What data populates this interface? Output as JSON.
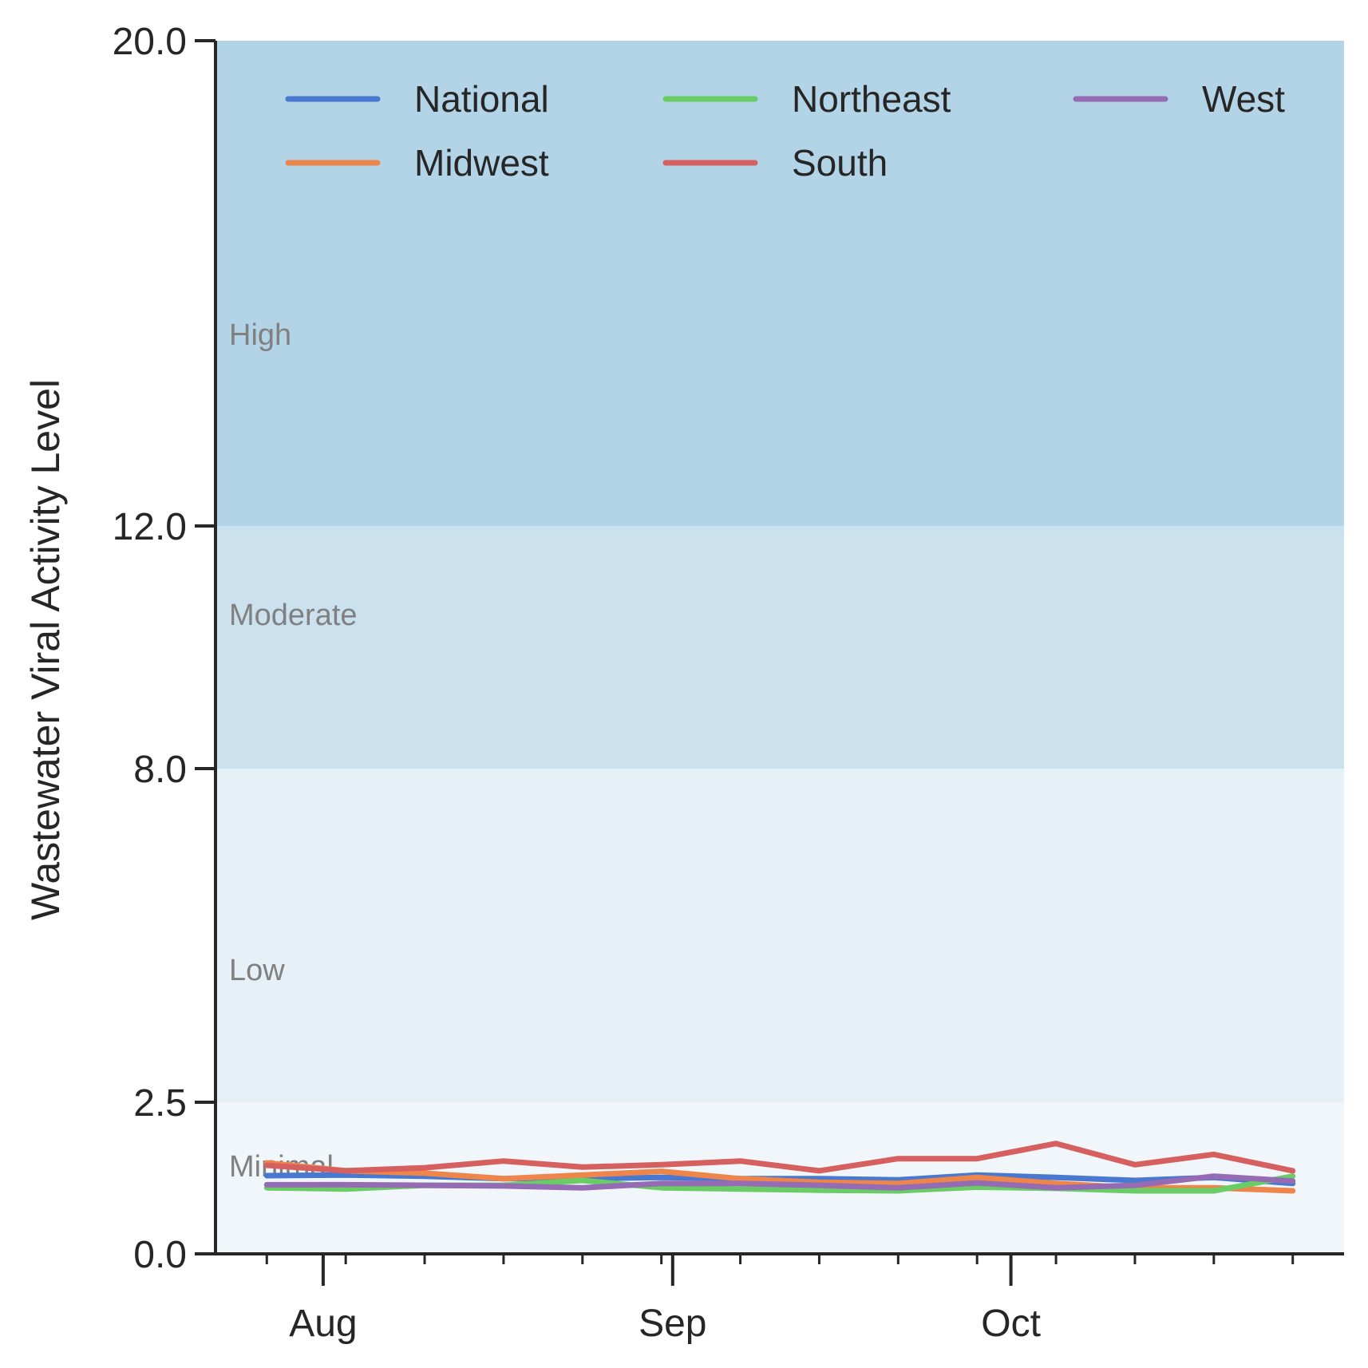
{
  "chart_data": {
    "type": "line",
    "title": "",
    "xlabel": "",
    "ylabel": "Wastewater Viral Activity Level",
    "ylim": [
      0,
      20
    ],
    "yticks": [
      0.0,
      2.5,
      8.0,
      12.0,
      20.0
    ],
    "ytick_labels": [
      "0.0",
      "2.5",
      "8.0",
      "12.0",
      "20.0"
    ],
    "xtick_labels": [
      "Aug",
      "Sep",
      "Oct"
    ],
    "xtick_dates": [
      "2024-08-01",
      "2024-09-01",
      "2024-10-01"
    ],
    "grid": false,
    "legend_position": "top",
    "bands": [
      {
        "label": "Minimal",
        "from": 0,
        "to": 2.5,
        "color": "#f1f6fa"
      },
      {
        "label": "Low",
        "from": 2.5,
        "to": 8,
        "color": "#e5f0f7"
      },
      {
        "label": "Moderate",
        "from": 8,
        "to": 12,
        "color": "#cbe1ee"
      },
      {
        "label": "High",
        "from": 12,
        "to": 20,
        "color": "#b2d4e6"
      }
    ],
    "x": [
      "2024-07-27",
      "2024-08-03",
      "2024-08-10",
      "2024-08-17",
      "2024-08-24",
      "2024-08-31",
      "2024-09-07",
      "2024-09-14",
      "2024-09-21",
      "2024-09-28",
      "2024-10-05",
      "2024-10-12",
      "2024-10-19",
      "2024-10-26"
    ],
    "series": [
      {
        "name": "National",
        "color": "#4878d0",
        "values": [
          1.29,
          1.3,
          1.28,
          1.24,
          1.24,
          1.26,
          1.24,
          1.24,
          1.22,
          1.3,
          1.26,
          1.21,
          1.26,
          1.16
        ]
      },
      {
        "name": "Midwest",
        "color": "#ee854a",
        "values": [
          1.5,
          1.37,
          1.33,
          1.24,
          1.3,
          1.36,
          1.24,
          1.18,
          1.16,
          1.26,
          1.16,
          1.09,
          1.09,
          1.04
        ]
      },
      {
        "name": "Northeast",
        "color": "#6acc64",
        "values": [
          1.09,
          1.07,
          1.13,
          1.13,
          1.21,
          1.09,
          1.07,
          1.05,
          1.04,
          1.1,
          1.08,
          1.04,
          1.04,
          1.28
        ]
      },
      {
        "name": "South",
        "color": "#d65f5f",
        "values": [
          1.46,
          1.37,
          1.42,
          1.53,
          1.43,
          1.47,
          1.53,
          1.37,
          1.57,
          1.57,
          1.82,
          1.47,
          1.64,
          1.37
        ]
      },
      {
        "name": "West",
        "color": "#956cb4",
        "values": [
          1.14,
          1.14,
          1.13,
          1.12,
          1.09,
          1.16,
          1.16,
          1.13,
          1.09,
          1.17,
          1.09,
          1.13,
          1.28,
          1.2
        ]
      }
    ]
  }
}
